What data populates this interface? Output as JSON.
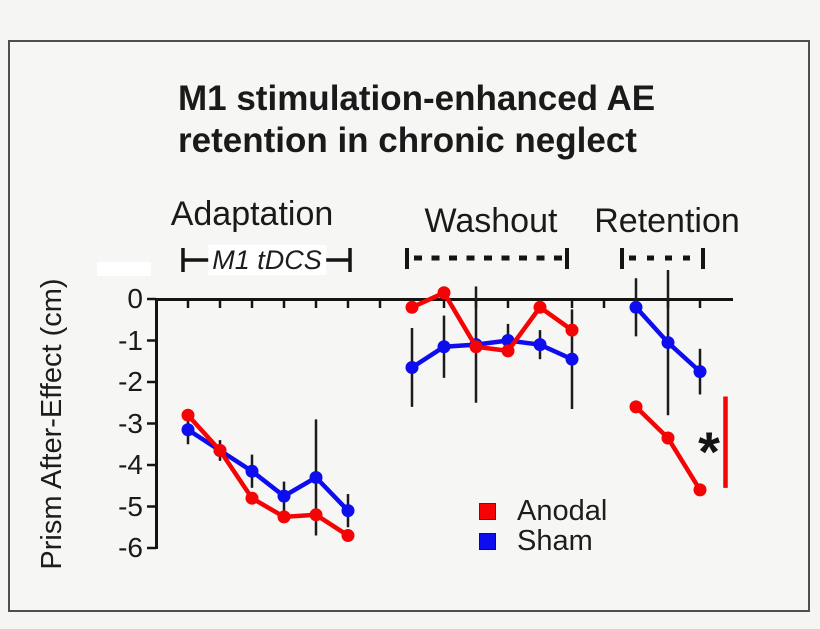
{
  "figure": {
    "title_line1": "M1 stimulation-enhanced AE",
    "title_line2": "retention in chronic neglect"
  },
  "chart_data": {
    "type": "line",
    "title": "M1 stimulation-enhanced AE retention in chronic neglect",
    "ylabel": "Prism After-Effect (cm)",
    "xlabel": "",
    "ylim": [
      -6.3,
      0.8
    ],
    "yticks": [
      0,
      -1,
      -2,
      -3,
      -4,
      -5,
      -6
    ],
    "x_tick_positions": [
      1,
      2,
      3,
      4,
      5,
      6,
      7,
      8,
      9,
      10,
      11,
      12,
      13,
      14,
      15,
      16,
      17
    ],
    "x_tick_labels_shown": false,
    "grid": false,
    "phases": [
      {
        "label": "Adaptation",
        "bracket_label": "M1 tDCS",
        "bracket_style": "solid",
        "x_range": [
          1,
          6
        ]
      },
      {
        "label": "Washout",
        "bracket_label": "",
        "bracket_style": "dashed",
        "x_range": [
          8,
          13
        ]
      },
      {
        "label": "Retention",
        "bracket_label": "",
        "bracket_style": "dashed",
        "x_range": [
          15,
          17
        ]
      }
    ],
    "series": [
      {
        "name": "Anodal",
        "color": "#f40404",
        "segments": [
          {
            "phase": "Adaptation",
            "x": [
              1,
              2,
              3,
              4,
              5,
              6
            ],
            "y": [
              -2.8,
              -3.65,
              -4.8,
              -5.25,
              -5.2,
              -5.7
            ],
            "err": [
              null,
              null,
              null,
              null,
              null,
              null
            ]
          },
          {
            "phase": "Washout",
            "x": [
              8,
              9,
              10,
              11,
              12,
              13
            ],
            "y": [
              -0.2,
              0.15,
              -1.15,
              -1.25,
              -0.2,
              -0.75
            ],
            "err": [
              null,
              null,
              null,
              null,
              null,
              null
            ]
          },
          {
            "phase": "Retention",
            "x": [
              15,
              16,
              17
            ],
            "y": [
              -2.6,
              -3.35,
              -4.6
            ],
            "err": [
              null,
              null,
              null
            ]
          }
        ]
      },
      {
        "name": "Sham",
        "color": "#0d0dee",
        "segments": [
          {
            "phase": "Adaptation",
            "x": [
              1,
              2,
              3,
              4,
              5,
              6
            ],
            "y": [
              -3.15,
              -3.65,
              -4.15,
              -4.75,
              -4.3,
              -5.1
            ],
            "err": [
              0.35,
              0.25,
              0.4,
              0.35,
              1.4,
              0.4
            ]
          },
          {
            "phase": "Washout",
            "x": [
              8,
              9,
              10,
              11,
              12,
              13
            ],
            "y": [
              -1.65,
              -1.15,
              -1.1,
              -1.0,
              -1.1,
              -1.45
            ],
            "err": [
              0.95,
              0.75,
              1.4,
              0.4,
              0.35,
              1.2
            ]
          },
          {
            "phase": "Retention",
            "x": [
              15,
              16,
              17
            ],
            "y": [
              -0.2,
              -1.05,
              -1.75
            ],
            "err": [
              0.7,
              1.75,
              0.55
            ]
          }
        ]
      }
    ],
    "significance": {
      "marker": "*",
      "phase": "Retention",
      "bar_y_range": [
        -2.35,
        -4.55
      ],
      "bar_color": "#f40404"
    },
    "legend": {
      "position": "inside-bottom-center",
      "entries": [
        "Anodal",
        "Sham"
      ]
    }
  }
}
